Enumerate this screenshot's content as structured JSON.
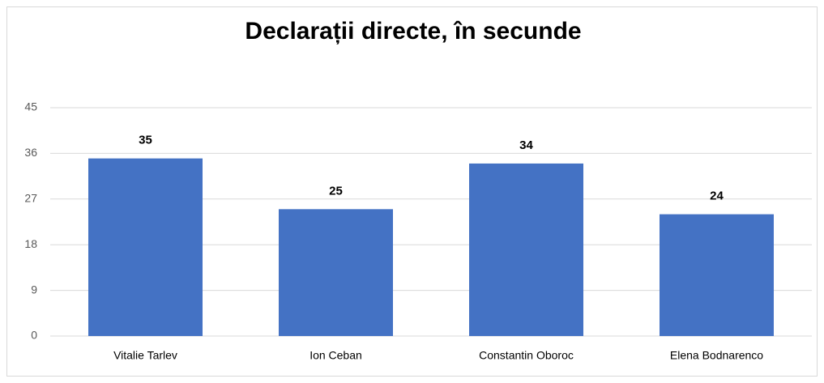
{
  "chart_data": {
    "type": "bar",
    "title": "Declarații directe, în secunde",
    "categories": [
      "Vitalie Tarlev",
      "Ion Ceban",
      "Constantin Oboroc",
      "Elena Bodnarenco"
    ],
    "values": [
      35,
      25,
      34,
      24
    ],
    "color": "#4472c4",
    "ylim": [
      0,
      45
    ],
    "yticks": [
      0,
      9,
      18,
      27,
      36,
      45
    ],
    "grid": true
  }
}
